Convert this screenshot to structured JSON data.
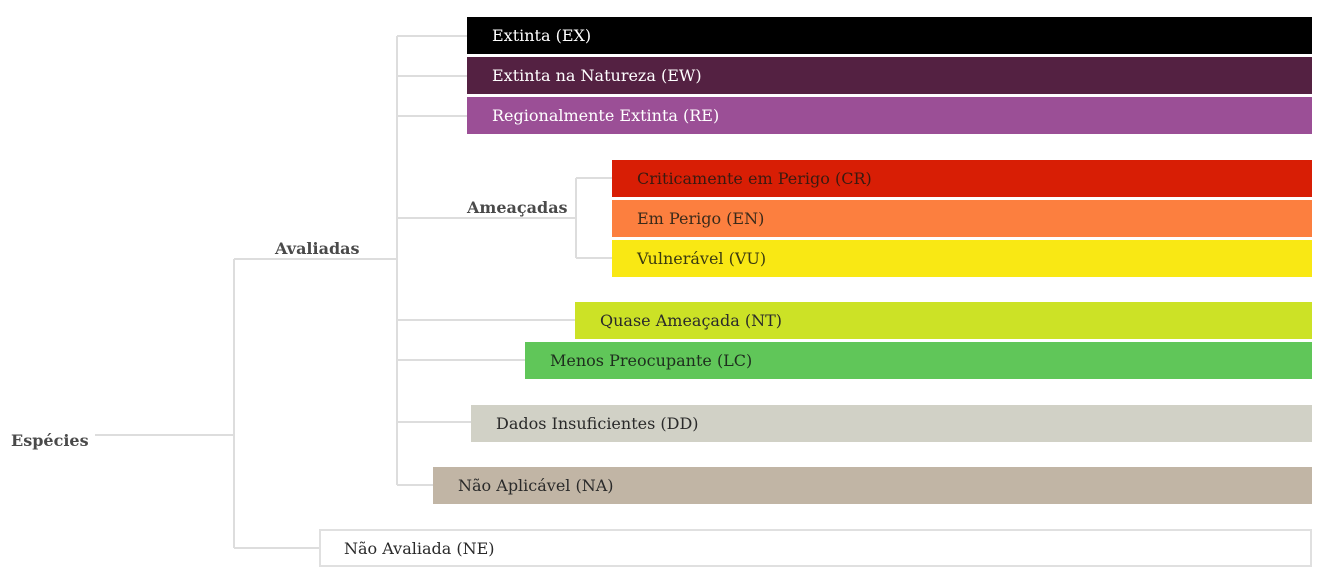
{
  "tree": {
    "root": {
      "label": "Espécies"
    },
    "assessed": {
      "label": "Avaliadas"
    },
    "threatened": {
      "label": "Ameaçadas"
    }
  },
  "categories": {
    "ex": {
      "label": "Extinta (EX)",
      "color": "#000000",
      "text_color": "#ffffff"
    },
    "ew": {
      "label": "Extinta na Natureza (EW)",
      "color": "#542142",
      "text_color": "#ffffff"
    },
    "re": {
      "label": "Regionalmente Extinta (RE)",
      "color": "#9b4f96",
      "text_color": "#ffffff"
    },
    "cr": {
      "label": "Criticamente em Perigo (CR)",
      "color": "#d81e05",
      "text_color": "#3a1a10"
    },
    "en": {
      "label": "Em Perigo (EN)",
      "color": "#fc7f3f",
      "text_color": "#3a2a1a"
    },
    "vu": {
      "label": "Vulnerável (VU)",
      "color": "#f9e814",
      "text_color": "#3a3a10"
    },
    "nt": {
      "label": "Quase Ameaçada (NT)",
      "color": "#cce226",
      "text_color": "#2a2a2a"
    },
    "lc": {
      "label": "Menos Preocupante (LC)",
      "color": "#60c659",
      "text_color": "#1e2e1e"
    },
    "dd": {
      "label": "Dados Insuficientes (DD)",
      "color": "#d1d1c6",
      "text_color": "#2a2a2a"
    },
    "na": {
      "label": "Não Aplicável (NA)",
      "color": "#c1b5a5",
      "text_color": "#2a2a2a"
    },
    "ne": {
      "label": "Não Avaliada (NE)",
      "color": "#ffffff",
      "text_color": "#2a2a2a"
    }
  }
}
